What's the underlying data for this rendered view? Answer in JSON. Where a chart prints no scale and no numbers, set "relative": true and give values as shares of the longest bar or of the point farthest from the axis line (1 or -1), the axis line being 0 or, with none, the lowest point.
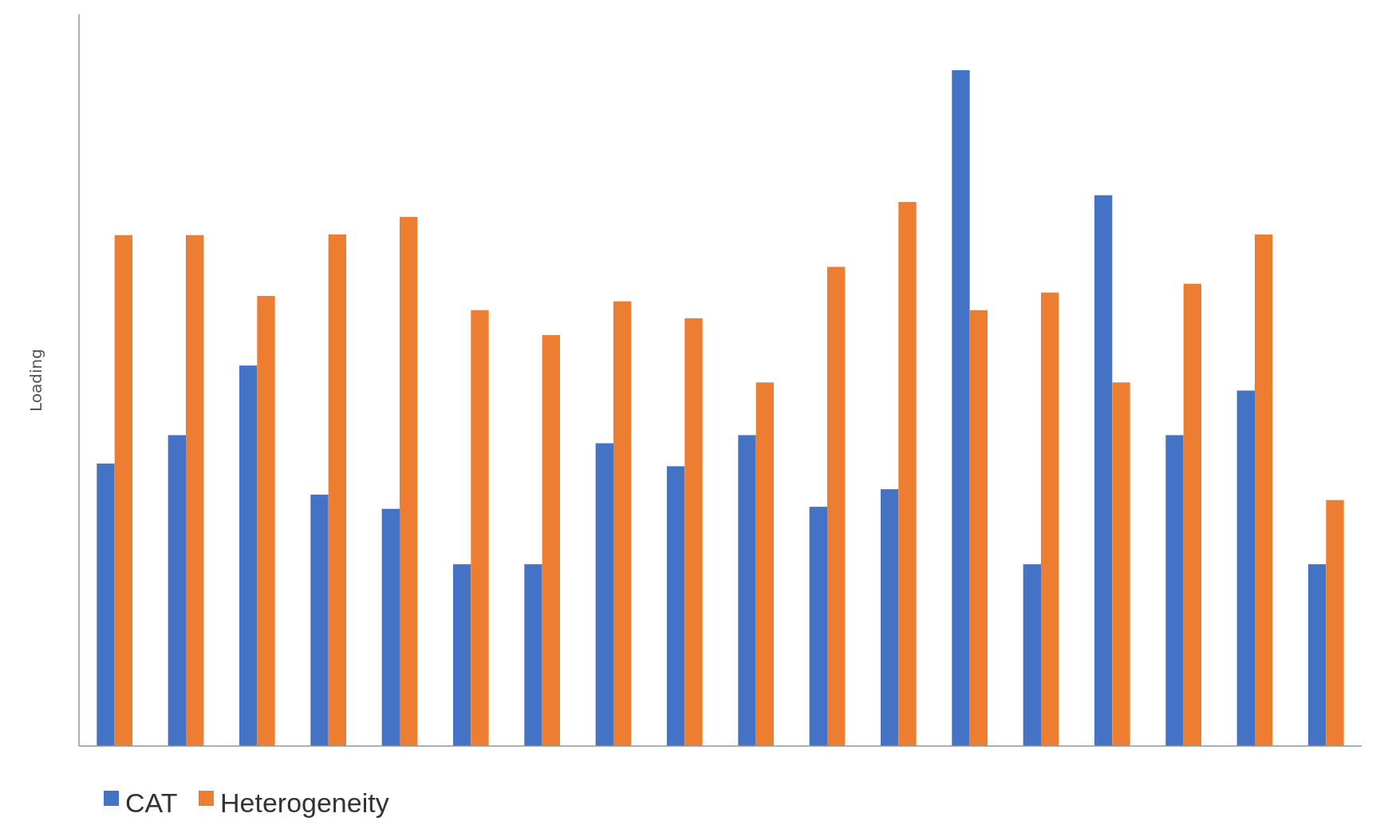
{
  "chart_data": {
    "type": "bar",
    "ylabel": "Loading",
    "relative": true,
    "legend": "bottom left",
    "categories": [
      null,
      null,
      null,
      null,
      null,
      null,
      null,
      null,
      null,
      null,
      null,
      null,
      null,
      null,
      null,
      null,
      null,
      null
    ],
    "series": [
      {
        "name": "CAT",
        "color": "#4472c4",
        "values": [
          0.418,
          0.46,
          0.563,
          0.372,
          0.351,
          0.269,
          0.269,
          0.448,
          0.414,
          0.46,
          0.354,
          0.38,
          1,
          0.269,
          0.815,
          0.46,
          0.526,
          0.269
        ]
      },
      {
        "name": "Heterogeneity",
        "color": "#ed7d31",
        "values": [
          0.756,
          0.756,
          0.666,
          0.757,
          0.783,
          0.645,
          0.608,
          0.658,
          0.633,
          0.538,
          0.709,
          0.805,
          0.645,
          0.671,
          0.538,
          0.684,
          0.757,
          0.364
        ]
      }
    ]
  }
}
